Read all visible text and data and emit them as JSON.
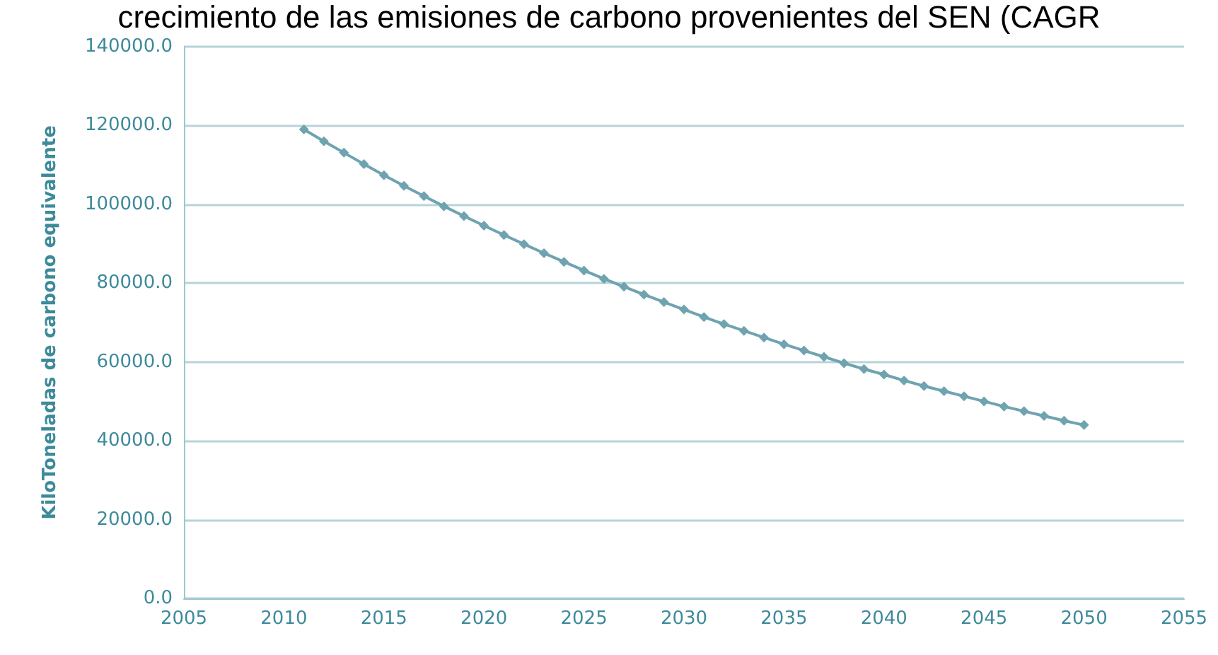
{
  "chart_data": {
    "type": "line",
    "title": "crecimiento de las emisiones de carbono provenientes del SEN (CAGR",
    "ylabel": "KiloToneladas de carbono equivalente",
    "x": [
      2011,
      2012,
      2013,
      2014,
      2015,
      2016,
      2017,
      2018,
      2019,
      2020,
      2021,
      2022,
      2023,
      2024,
      2025,
      2026,
      2027,
      2028,
      2029,
      2030,
      2031,
      2032,
      2033,
      2034,
      2035,
      2036,
      2037,
      2038,
      2039,
      2040,
      2041,
      2042,
      2043,
      2044,
      2045,
      2046,
      2047,
      2048,
      2049,
      2050
    ],
    "series": [
      {
        "color": "#6fa3b0",
        "values": [
          119000,
          116000,
          113100,
          110200,
          107400,
          104700,
          102100,
          99500,
          97000,
          94600,
          92200,
          89900,
          87600,
          85400,
          83200,
          81100,
          79100,
          77100,
          75200,
          73300,
          71400,
          69600,
          67900,
          66200,
          64500,
          62900,
          61300,
          59700,
          58200,
          56800,
          55300,
          53900,
          52600,
          51300,
          50000,
          48700,
          47500,
          46300,
          45100,
          44000
        ]
      }
    ],
    "xlim": [
      2005,
      2055
    ],
    "xticks": [
      2005,
      2010,
      2015,
      2020,
      2025,
      2030,
      2035,
      2040,
      2045,
      2050,
      2055
    ],
    "ylim": [
      0,
      140000
    ],
    "yticks": [
      {
        "value": 0,
        "label": "0.0"
      },
      {
        "value": 20000,
        "label": "20000.0"
      },
      {
        "value": 40000,
        "label": "40000.0"
      },
      {
        "value": 60000,
        "label": "60000.0"
      },
      {
        "value": 80000,
        "label": "80000.0"
      },
      {
        "value": 100000,
        "label": "100000.0"
      },
      {
        "value": 120000,
        "label": "120000.0"
      },
      {
        "value": 140000,
        "label": "140000.0"
      }
    ],
    "grid": "y",
    "marker": "diamond",
    "line_style": "solid"
  }
}
